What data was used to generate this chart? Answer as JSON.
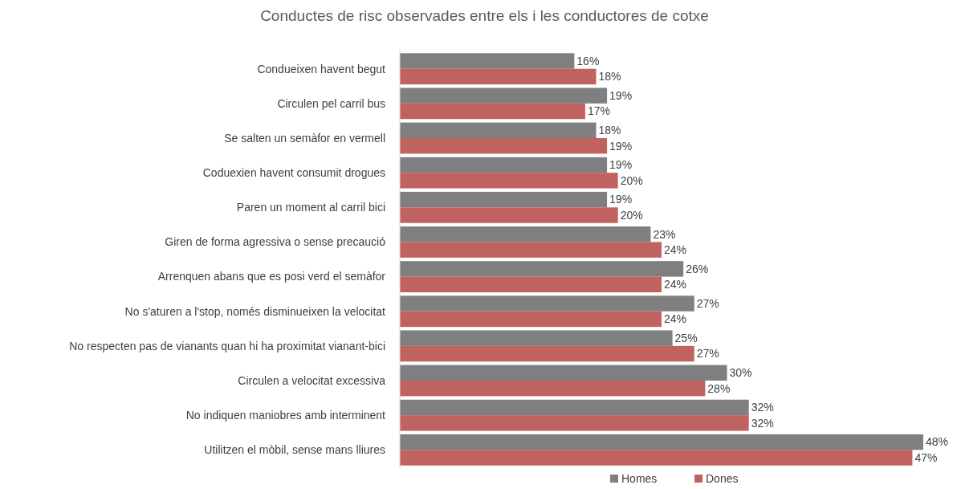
{
  "chart_data": {
    "type": "bar",
    "orientation": "horizontal",
    "title": "Conductes de risc observades entre els i les conductores de cotxe",
    "categories": [
      "Condueixen havent begut",
      "Circulen pel carril bus",
      "Se salten un semàfor en vermell",
      "Coduexien havent consumit drogues",
      "Paren un moment al carril bici",
      "Giren de forma agressiva o sense precaució",
      "Arrenquen abans que es posi verd el semàfor",
      "No s'aturen a l'stop, només disminueixen la velocitat",
      "No respecten pas de vianants quan hi ha proximitat vianant-bici",
      "Circulen a velocitat excessiva",
      "No indiquen maniobres amb interminent",
      "Utilitzen el mòbil, sense mans lliures"
    ],
    "series": [
      {
        "name": "Homes",
        "color": "#7f7f7f",
        "values": [
          16,
          19,
          18,
          19,
          19,
          23,
          26,
          27,
          25,
          30,
          32,
          48
        ],
        "value_labels": [
          "16%",
          "19%",
          "18%",
          "19%",
          "19%",
          "23%",
          "26%",
          "27%",
          "25%",
          "30%",
          "32%",
          "48%"
        ]
      },
      {
        "name": "Dones",
        "color": "#c0625f",
        "values": [
          18,
          17,
          19,
          20,
          20,
          24,
          24,
          24,
          27,
          28,
          32,
          47
        ],
        "value_labels": [
          "18%",
          "17%",
          "19%",
          "20%",
          "20%",
          "24%",
          "24%",
          "24%",
          "27%",
          "28%",
          "32%",
          "47%"
        ]
      }
    ],
    "legend": "bottom"
  }
}
